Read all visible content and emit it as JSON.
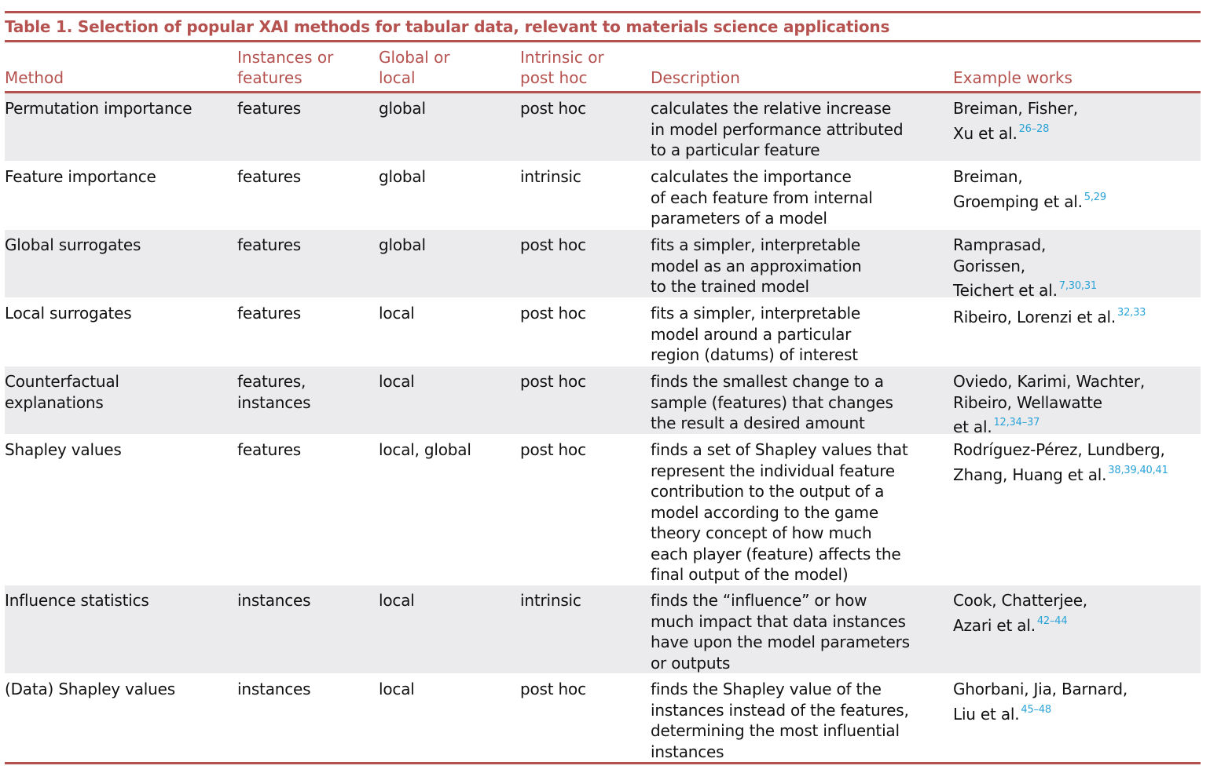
{
  "title": "Table 1.  Selection of popular XAI methods for tabular data, relevant to materials science applications",
  "headers": [
    [
      "",
      "Method"
    ],
    [
      "Instances or",
      "features"
    ],
    [
      "Global or",
      "local"
    ],
    [
      "Intrinsic or",
      "post hoc"
    ],
    [
      "",
      "Description"
    ],
    [
      "",
      "Example works"
    ]
  ],
  "rows": [
    {
      "method": [
        "Permutation importance"
      ],
      "scope": [
        "features"
      ],
      "gl": [
        "global"
      ],
      "type": [
        "post hoc"
      ],
      "desc": [
        "calculates the relative increase",
        "in model performance attributed",
        "to a particular feature"
      ],
      "works": [
        "Breiman, Fisher,",
        "Xu et al."
      ],
      "refs": "26–28"
    },
    {
      "method": [
        "Feature importance"
      ],
      "scope": [
        "features"
      ],
      "gl": [
        "global"
      ],
      "type": [
        "intrinsic"
      ],
      "desc": [
        "calculates the importance",
        "of each feature from internal",
        " parameters of a model"
      ],
      "works": [
        "Breiman,",
        "Groemping et al."
      ],
      "refs": "5,29"
    },
    {
      "method": [
        "Global surrogates"
      ],
      "scope": [
        "features"
      ],
      "gl": [
        "global"
      ],
      "type": [
        "post hoc"
      ],
      "desc": [
        "fits a simpler, interpretable",
        "model as an approximation",
        "to the trained model"
      ],
      "works": [
        "Ramprasad,",
        "Gorissen,",
        "Teichert et al."
      ],
      "refs": "7,30,31"
    },
    {
      "method": [
        "Local surrogates"
      ],
      "scope": [
        "features"
      ],
      "gl": [
        "local"
      ],
      "type": [
        "post hoc"
      ],
      "desc": [
        "fits a simpler, interpretable",
        "model around a particular",
        "region (datums) of interest"
      ],
      "works": [
        "Ribeiro, Lorenzi et al."
      ],
      "refs": "32,33"
    },
    {
      "method": [
        "Counterfactual",
        "explanations"
      ],
      "scope": [
        "features,",
        "instances"
      ],
      "gl": [
        "local"
      ],
      "type": [
        "post hoc"
      ],
      "desc": [
        "finds the smallest change to a",
        "sample (features) that changes",
        "the result a desired amount"
      ],
      "works": [
        "Oviedo, Karimi, Wachter,",
        "Ribeiro, Wellawatte",
        "et al."
      ],
      "refs": "12,34–37"
    },
    {
      "method": [
        "Shapley values"
      ],
      "scope": [
        "features"
      ],
      "gl": [
        "local, global"
      ],
      "type": [
        "post hoc"
      ],
      "desc": [
        "finds a set of Shapley values that",
        "represent the individual feature",
        "contribution to the output of a",
        "model according to the game",
        "theory concept of how much",
        "each player (feature) affects the",
        "final output of the model)"
      ],
      "works": [
        "Rodríguez-Pérez, Lundberg,",
        "Zhang, Huang et al."
      ],
      "refs": "38,39,40,41"
    },
    {
      "method": [
        "Influence statistics"
      ],
      "scope": [
        "instances"
      ],
      "gl": [
        "local"
      ],
      "type": [
        "intrinsic"
      ],
      "desc": [
        "finds the “influence” or how",
        "much impact that data instances",
        "have upon the model parameters",
        "or outputs"
      ],
      "works": [
        "Cook, Chatterjee,",
        "Azari et al."
      ],
      "refs": "42–44"
    },
    {
      "method": [
        "(Data) Shapley values"
      ],
      "scope": [
        "instances"
      ],
      "gl": [
        "local"
      ],
      "type": [
        "post hoc"
      ],
      "desc": [
        "finds the Shapley value of the",
        "instances instead of the features,",
        "determining the most influential",
        "instances"
      ],
      "works": [
        "Ghorbani, Jia, Barnard,",
        "Liu et al."
      ],
      "refs": "45–48"
    }
  ],
  "colors": {
    "accent": "#b5524f",
    "row_shade": "#ebebed",
    "ref": "#29a3d8"
  }
}
